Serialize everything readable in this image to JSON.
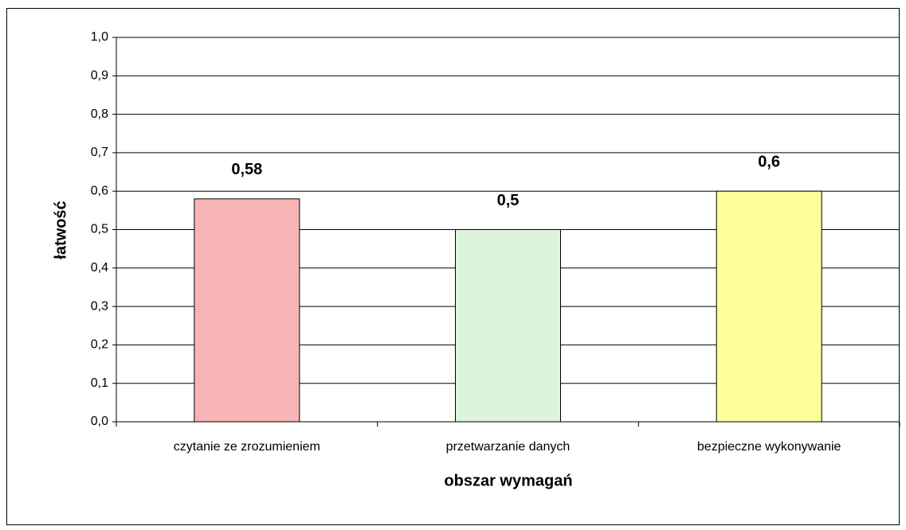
{
  "chart_data": {
    "type": "bar",
    "x_label": "obszar wymagań",
    "y_label": "łatwość",
    "categories": [
      "czytanie ze zrozumieniem",
      "przetwarzanie danych",
      "bezpieczne wykonywanie"
    ],
    "values": [
      0.58,
      0.5,
      0.6
    ],
    "value_labels": [
      "0,58",
      "0,5",
      "0,6"
    ],
    "colors": [
      "#f7b4b4",
      "#dcf3dc",
      "#ffff99"
    ],
    "ylim": [
      0,
      1
    ],
    "yticks": [
      {
        "value": 0,
        "label": "0,0"
      },
      {
        "value": 0.1,
        "label": "0,1"
      },
      {
        "value": 0.2,
        "label": "0,2"
      },
      {
        "value": 0.3,
        "label": "0,3"
      },
      {
        "value": 0.4,
        "label": "0,4"
      },
      {
        "value": 0.5,
        "label": "0,5"
      },
      {
        "value": 0.6,
        "label": "0,6"
      },
      {
        "value": 0.7,
        "label": "0,7"
      },
      {
        "value": 0.8,
        "label": "0,8"
      },
      {
        "value": 0.9,
        "label": "0,9"
      },
      {
        "value": 1,
        "label": "1,0"
      }
    ],
    "grid": true
  }
}
